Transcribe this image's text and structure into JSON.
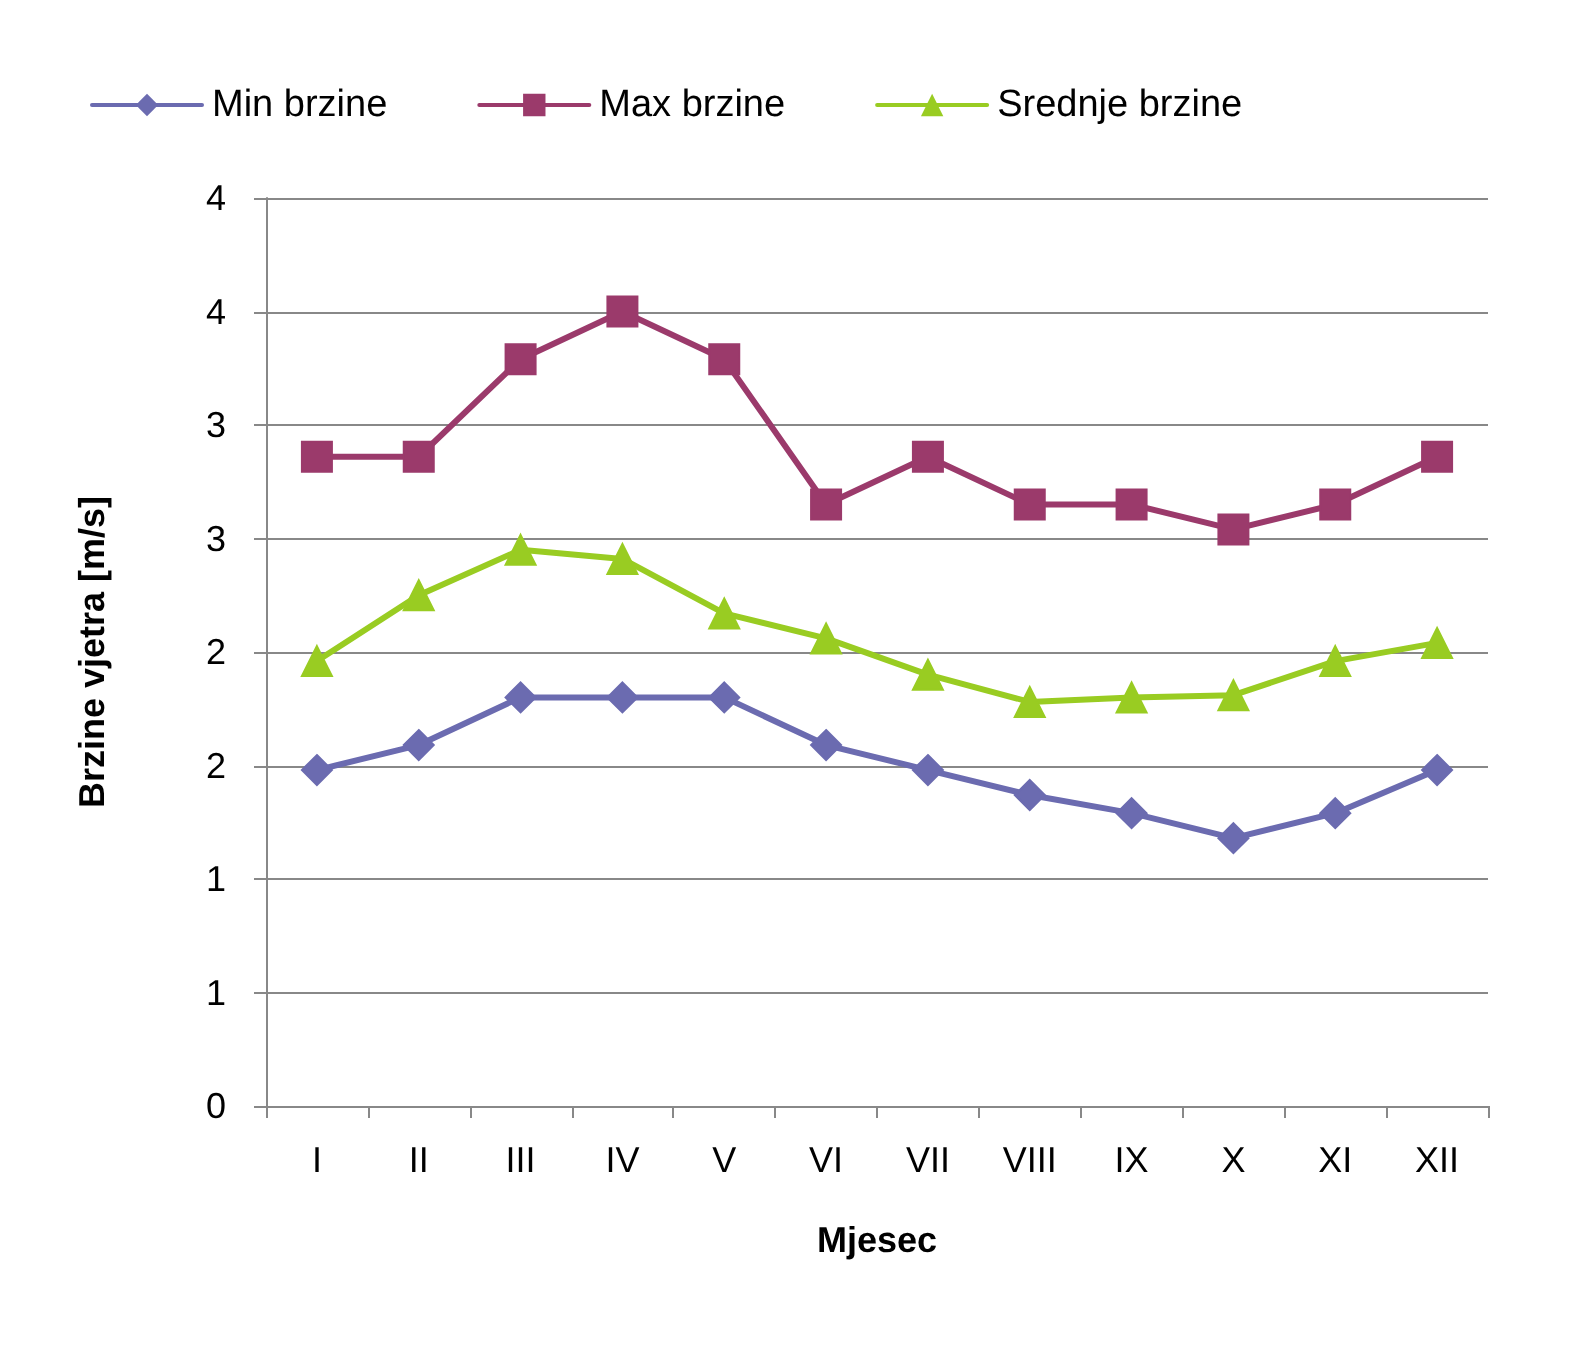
{
  "chart_data": {
    "type": "line",
    "xlabel": "Mjesec",
    "ylabel": "Brzine vjetra [m/s]",
    "categories": [
      "I",
      "II",
      "III",
      "IV",
      "V",
      "VI",
      "VII",
      "VIII",
      "IX",
      "X",
      "XI",
      "XII"
    ],
    "series": [
      {
        "name": "Min brzine",
        "color": "#6b6bb0",
        "marker": "diamond",
        "values": [
          1.48,
          1.59,
          1.8,
          1.8,
          1.8,
          1.59,
          1.48,
          1.37,
          1.29,
          1.18,
          1.29,
          1.48
        ]
      },
      {
        "name": "Max brzine",
        "color": "#9b3a6b",
        "marker": "square",
        "values": [
          2.86,
          2.86,
          3.29,
          3.5,
          3.29,
          2.65,
          2.86,
          2.65,
          2.65,
          2.54,
          2.65,
          2.86
        ]
      },
      {
        "name": "Srednje brzine",
        "color": "#99cc22",
        "marker": "triangle",
        "values": [
          1.96,
          2.25,
          2.45,
          2.41,
          2.17,
          2.06,
          1.9,
          1.78,
          1.8,
          1.81,
          1.96,
          2.04
        ]
      }
    ],
    "ylim": [
      0,
      4
    ],
    "yticks": [
      0,
      {
        "value": 0.5,
        "label": "1"
      },
      1,
      {
        "value": 1.5,
        "label": "2"
      },
      2,
      {
        "value": 2.5,
        "label": "3"
      },
      3,
      {
        "value": 3.5,
        "label": "4"
      },
      4
    ],
    "grid": "y",
    "legend": "top"
  }
}
